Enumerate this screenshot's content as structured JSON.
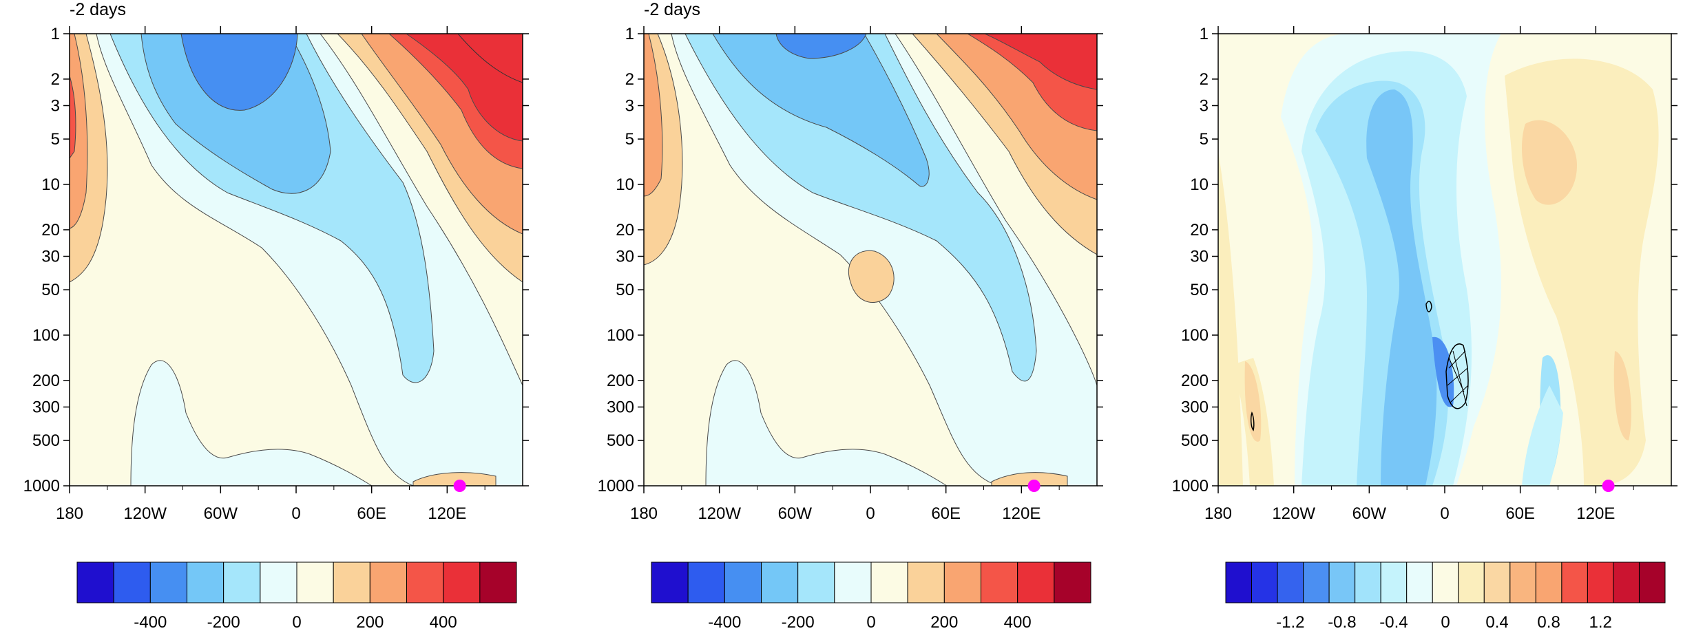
{
  "chart_data": [
    {
      "type": "heatmap",
      "title": "-2 days",
      "x_ticks": [
        "180",
        "120W",
        "60W",
        "0",
        "60E",
        "120E"
      ],
      "x_range": [
        -180,
        180
      ],
      "y_ticks": [
        "1",
        "2",
        "3",
        "5",
        "10",
        "20",
        "30",
        "50",
        "100",
        "200",
        "300",
        "500",
        "1000"
      ],
      "y_range": [
        1,
        1000
      ],
      "y_scale": "log",
      "y_inverted": true,
      "marker": {
        "x": 130,
        "y": 1000,
        "color": "#ff00ff"
      },
      "colorbar": {
        "labels": [
          "-400",
          "-200",
          "0",
          "200",
          "400"
        ],
        "colors": [
          "#1f0fcf",
          "#2e5cef",
          "#468ff2",
          "#74c7f7",
          "#a5e6fb",
          "#e8fcfc",
          "#fcfbe4",
          "#fad29a",
          "#f9a571",
          "#f45548",
          "#ea3038",
          "#a6022a"
        ]
      }
    },
    {
      "type": "heatmap",
      "title": "-2 days",
      "x_ticks": [
        "180",
        "120W",
        "60W",
        "0",
        "60E",
        "120E"
      ],
      "x_range": [
        -180,
        180
      ],
      "y_ticks": [
        "1",
        "2",
        "3",
        "5",
        "10",
        "20",
        "30",
        "50",
        "100",
        "200",
        "300",
        "500",
        "1000"
      ],
      "y_range": [
        1,
        1000
      ],
      "y_scale": "log",
      "y_inverted": true,
      "marker": {
        "x": 130,
        "y": 1000,
        "color": "#ff00ff"
      },
      "colorbar": {
        "labels": [
          "-400",
          "-200",
          "0",
          "200",
          "400"
        ],
        "colors": [
          "#1f0fcf",
          "#2e5cef",
          "#468ff2",
          "#74c7f7",
          "#a5e6fb",
          "#e8fcfc",
          "#fcfbe4",
          "#fad29a",
          "#f9a571",
          "#f45548",
          "#ea3038",
          "#a6022a"
        ]
      }
    },
    {
      "type": "heatmap",
      "title": "",
      "x_ticks": [
        "180",
        "120W",
        "60W",
        "0",
        "60E",
        "120E"
      ],
      "x_range": [
        -180,
        180
      ],
      "y_ticks": [
        "1",
        "2",
        "3",
        "5",
        "10",
        "20",
        "30",
        "50",
        "100",
        "200",
        "300",
        "500",
        "1000"
      ],
      "y_range": [
        1,
        1000
      ],
      "y_scale": "log",
      "y_inverted": true,
      "marker": {
        "x": 130,
        "y": 1000,
        "color": "#ff00ff"
      },
      "colorbar": {
        "labels": [
          "-1.2",
          "-0.8",
          "-0.4",
          "0",
          "0.4",
          "0.8",
          "1.2"
        ],
        "colors": [
          "#1f0fcf",
          "#2533e6",
          "#3563ee",
          "#4b8ff2",
          "#78c6f7",
          "#a1e3fb",
          "#c5f3fc",
          "#e8fcfc",
          "#fcfbe4",
          "#fbeebd",
          "#fad7a3",
          "#f9b57f",
          "#f9a571",
          "#f45548",
          "#ea3038",
          "#cb1430",
          "#a6022a"
        ]
      }
    }
  ]
}
